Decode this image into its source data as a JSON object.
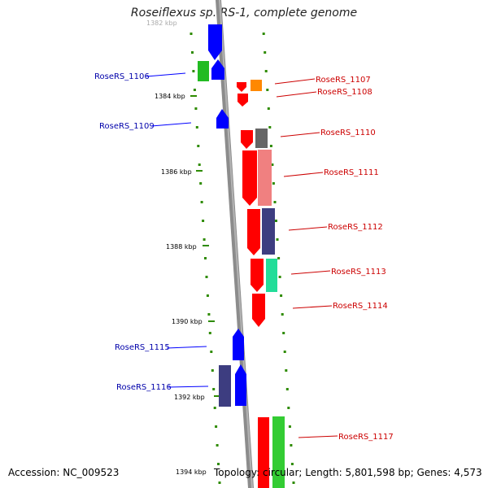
{
  "title": "Roseiflexus sp. RS-1, complete genome",
  "footer": {
    "accession": "Accession: NC_009523",
    "topology": "Topology: circular; Length: 5,801,598 bp; Genes: 4,573"
  },
  "colors": {
    "backbone": "#8c8c8c",
    "forward_strand_genes": "#0000ff",
    "reverse_strand_genes": "#ff0000",
    "left_labels": "#0000aa",
    "right_labels": "#cc0000",
    "tick_marks": "#2e8b00"
  },
  "ticks": [
    "1382 kbp",
    "1384 kbp",
    "1386 kbp",
    "1388 kbp",
    "1390 kbp",
    "1392 kbp",
    "1394 kbp"
  ],
  "labels_left": [
    "RoseRS_1106",
    "RoseRS_1109",
    "RoseRS_1115",
    "RoseRS_1116"
  ],
  "labels_right": [
    "RoseRS_1107",
    "RoseRS_1108",
    "RoseRS_1110",
    "RoseRS_1111",
    "RoseRS_1112",
    "RoseRS_1113",
    "RoseRS_1114",
    "RoseRS_1117"
  ]
}
